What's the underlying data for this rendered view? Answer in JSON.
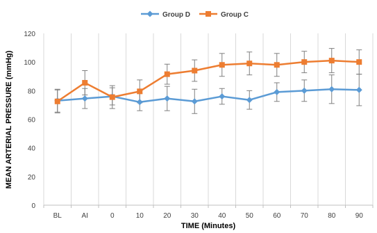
{
  "chart_data": {
    "type": "line",
    "xlabel": "TIME (Minutes)",
    "ylabel": "MEAN ARTERIAL PRESSURE (mmHg)",
    "categories": [
      "BL",
      "AI",
      "0",
      "10",
      "20",
      "30",
      "40",
      "50",
      "60",
      "70",
      "80",
      "90"
    ],
    "yticks": [
      "0",
      "20",
      "40",
      "60",
      "80",
      "100",
      "120"
    ],
    "ylim": [
      0,
      120
    ],
    "grid": "vertical",
    "legend_position": "top",
    "series": [
      {
        "name": "Group D",
        "color": "#5B9BD5",
        "marker": "diamond",
        "values": [
          73,
          74.5,
          76,
          72,
          74.5,
          72.5,
          76,
          73.5,
          79,
          80,
          81,
          80.5
        ],
        "error": [
          8,
          7,
          6,
          6,
          8.5,
          8.5,
          5.5,
          6.5,
          6.5,
          7.5,
          10,
          11
        ]
      },
      {
        "name": "Group C",
        "color": "#ED7D31",
        "marker": "square",
        "values": [
          72.5,
          85.5,
          75.5,
          79.5,
          91.5,
          94,
          98,
          99,
          98,
          100,
          101,
          100
        ],
        "error": [
          8,
          8.5,
          8,
          8,
          7,
          7.5,
          8,
          8,
          8,
          7.5,
          8.5,
          8.5
        ]
      }
    ]
  }
}
